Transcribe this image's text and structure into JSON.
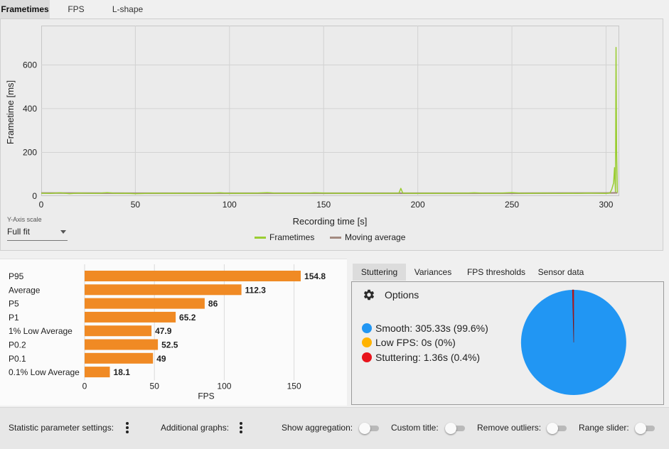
{
  "tabs": [
    {
      "label": "Frametimes",
      "active": true
    },
    {
      "label": "FPS",
      "active": false
    },
    {
      "label": "L-shape",
      "active": false
    }
  ],
  "frametime_chart": {
    "chart_data": {
      "type": "line",
      "title": "",
      "xlabel": "Recording time [s]",
      "ylabel": "Frametime [ms]",
      "xlim": [
        0,
        307
      ],
      "ylim": [
        0,
        780
      ],
      "x_ticks": [
        0,
        50,
        100,
        150,
        200,
        250,
        300
      ],
      "y_ticks": [
        0,
        200,
        400,
        600
      ],
      "grid": true,
      "legend_position": "bottom-center",
      "series": [
        {
          "name": "Frametimes",
          "color": "#9acd32",
          "x": [
            0,
            5,
            10,
            15,
            20,
            25,
            30,
            35,
            40,
            45,
            50,
            55,
            60,
            65,
            70,
            75,
            80,
            85,
            90,
            95,
            100,
            105,
            110,
            115,
            120,
            125,
            130,
            135,
            140,
            145,
            150,
            155,
            160,
            165,
            170,
            175,
            180,
            185,
            190,
            191,
            192,
            195,
            200,
            205,
            210,
            215,
            220,
            225,
            230,
            235,
            240,
            245,
            250,
            255,
            260,
            265,
            270,
            275,
            280,
            285,
            290,
            295,
            300,
            302,
            303,
            304,
            304.5,
            305,
            305.3,
            305.6,
            306
          ],
          "y": [
            13,
            12,
            15,
            11,
            14,
            13,
            12,
            16,
            12,
            13,
            11,
            12,
            14,
            12,
            13,
            12,
            14,
            12,
            13,
            15,
            12,
            13,
            12,
            14,
            16,
            13,
            12,
            13,
            12,
            15,
            14,
            13,
            12,
            13,
            12,
            14,
            12,
            13,
            14,
            35,
            14,
            13,
            12,
            13,
            12,
            13,
            14,
            13,
            15,
            13,
            12,
            14,
            16,
            13,
            12,
            14,
            13,
            12,
            13,
            12,
            14,
            13,
            12,
            14,
            30,
            60,
            130,
            20,
            680,
            210,
            15
          ]
        },
        {
          "name": "Moving average",
          "color": "#a38a80",
          "x": [
            0,
            50,
            100,
            150,
            200,
            250,
            300,
            306
          ],
          "y": [
            14,
            13,
            13,
            13,
            13,
            13,
            14,
            15
          ]
        }
      ]
    },
    "y_axis_scale": {
      "caption": "Y-Axis scale",
      "value": "Full fit"
    }
  },
  "stats_chart": {
    "chart_data": {
      "type": "bar",
      "orientation": "horizontal",
      "xlabel": "FPS",
      "xlim": [
        0,
        167
      ],
      "x_ticks": [
        0,
        50,
        100,
        150
      ],
      "bar_color": "#f08a24",
      "categories": [
        "P95",
        "Average",
        "P5",
        "P1",
        "1% Low Average",
        "P0.2",
        "P0.1",
        "0.1% Low Average"
      ],
      "values": [
        154.8,
        112.3,
        86,
        65.2,
        47.9,
        52.5,
        49,
        18.1
      ],
      "value_labels": [
        "154.8",
        "112.3",
        "86",
        "65.2",
        "47.9",
        "52.5",
        "49",
        "18.1"
      ]
    }
  },
  "sub_tabs": [
    {
      "label": "Stuttering",
      "active": true
    },
    {
      "label": "Variances",
      "active": false
    },
    {
      "label": "FPS thresholds",
      "active": false
    },
    {
      "label": "Sensor data",
      "active": false
    }
  ],
  "stuttering": {
    "options_label": "Options",
    "items": [
      {
        "label": "Smooth:",
        "value": "305.33s (99.6%)",
        "color": "#2196f3"
      },
      {
        "label": "Low FPS:",
        "value": "0s (0%)",
        "color": "#ffb300"
      },
      {
        "label": "Stuttering:",
        "value": "1.36s (0.4%)",
        "color": "#e8141c"
      }
    ],
    "chart_data": {
      "type": "pie",
      "categories": [
        "Smooth",
        "Low FPS",
        "Stuttering"
      ],
      "values": [
        99.6,
        0,
        0.4
      ],
      "colors": [
        "#2196f3",
        "#ffb300",
        "#e8141c"
      ]
    }
  },
  "footer": {
    "statistic_settings": "Statistic parameter settings:",
    "additional_graphs": "Additional graphs:",
    "show_aggregation": "Show aggregation:",
    "custom_title": "Custom title:",
    "remove_outliers": "Remove outliers:",
    "range_slider": "Range slider:",
    "toggles": {
      "show_aggregation": false,
      "custom_title": false,
      "remove_outliers": false,
      "range_slider": false
    }
  }
}
